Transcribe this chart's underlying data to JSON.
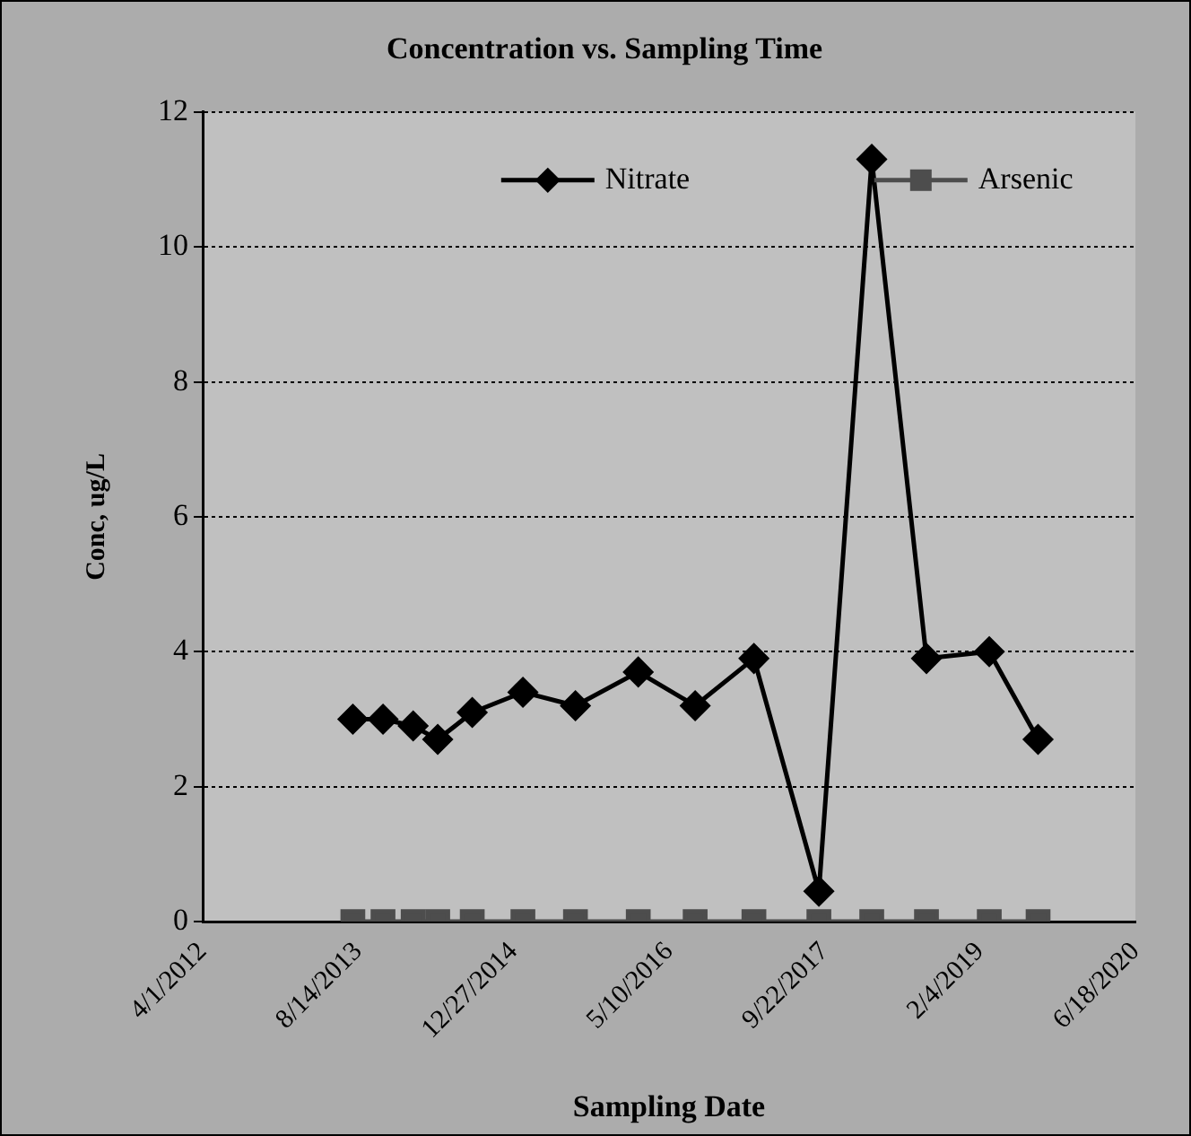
{
  "chart_data": {
    "type": "line",
    "title": "Concentration vs. Sampling Time",
    "xlabel": "Sampling Date",
    "ylabel": "Conc, ug/L",
    "x": [
      "2013-07-28",
      "2013-11-02",
      "2014-02-07",
      "2014-04-27",
      "2014-08-16",
      "2015-01-26",
      "2015-07-14",
      "2016-02-01",
      "2016-08-02",
      "2017-02-07",
      "2017-09-04",
      "2018-02-21",
      "2018-08-16",
      "2019-03-06",
      "2019-08-10"
    ],
    "series": [
      {
        "name": "Nitrate",
        "color": "#000000",
        "marker": "diamond",
        "values": [
          3.0,
          3.0,
          2.9,
          2.7,
          3.1,
          3.4,
          3.2,
          3.7,
          3.2,
          3.9,
          0.45,
          11.3,
          3.9,
          4.0,
          2.7
        ]
      },
      {
        "name": "Arsenic",
        "color": "#4d4d4d",
        "marker": "square",
        "values": [
          0,
          0,
          0,
          0,
          0,
          0,
          0,
          0,
          0,
          0,
          0,
          0,
          0,
          0,
          0
        ]
      }
    ],
    "xlim": [
      "2012-04-01",
      "2020-06-18"
    ],
    "xticks": [
      {
        "value": "2012-04-01",
        "label": "4/1/2012"
      },
      {
        "value": "2013-08-14",
        "label": "8/14/2013"
      },
      {
        "value": "2014-12-27",
        "label": "12/27/2014"
      },
      {
        "value": "2016-05-10",
        "label": "5/10/2016"
      },
      {
        "value": "2017-09-22",
        "label": "9/22/2017"
      },
      {
        "value": "2019-02-04",
        "label": "2/4/2019"
      },
      {
        "value": "2020-06-18",
        "label": "6/18/2020"
      }
    ],
    "ylim": [
      0,
      12
    ],
    "yticks": [
      0,
      2,
      4,
      6,
      8,
      10,
      12
    ],
    "grid": "y",
    "legend": "top",
    "line_style": "solid"
  }
}
